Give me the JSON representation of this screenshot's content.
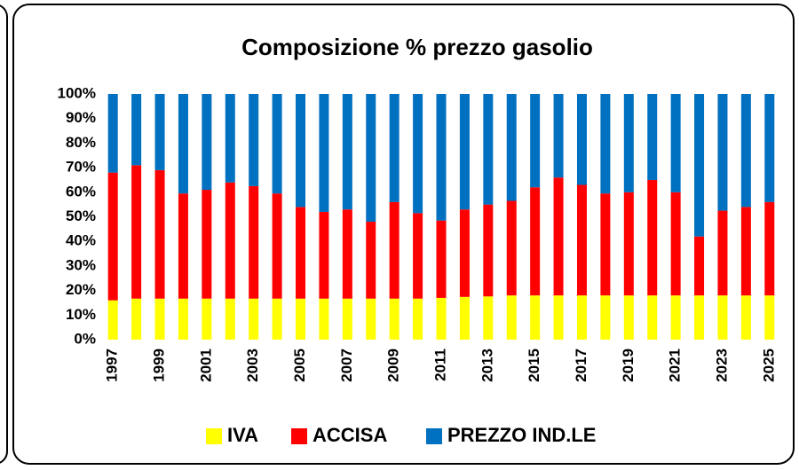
{
  "chart_data": {
    "type": "stacked_bar",
    "title": "Composizione % prezzo gasolio",
    "categories": [
      "1997",
      null,
      "1999",
      null,
      "2001",
      null,
      "2003",
      null,
      "2005",
      null,
      "2007",
      null,
      "2009",
      null,
      "2011",
      null,
      "2013",
      null,
      "2015",
      null,
      "2017",
      null,
      "2019",
      null,
      "2021",
      null,
      "2023",
      null,
      "2025"
    ],
    "series": [
      {
        "name": "IVA",
        "color": "#ffff00",
        "values": [
          16,
          16.7,
          16.7,
          16.7,
          16.7,
          16.7,
          16.7,
          16.7,
          16.7,
          16.7,
          16.7,
          16.7,
          16.7,
          16.7,
          17,
          17.4,
          17.6,
          18,
          18,
          18,
          18,
          18,
          18,
          18,
          18,
          18,
          18,
          18,
          18
        ]
      },
      {
        "name": "ACCISA",
        "color": "#ff0000",
        "values": [
          52,
          54.3,
          52.3,
          42.8,
          44.3,
          47.3,
          45.8,
          42.8,
          37.3,
          35.3,
          36.3,
          31.3,
          39.3,
          34.8,
          31.5,
          35.6,
          37.4,
          38.5,
          44,
          48,
          45,
          41.5,
          42,
          47,
          42,
          24,
          34.5,
          36,
          38
        ]
      },
      {
        "name": "PREZZO IND.LE",
        "color": "#0070c0",
        "values": [
          32,
          29,
          31,
          40.5,
          39,
          36,
          37.5,
          40.5,
          46,
          48,
          47,
          52,
          44,
          48.5,
          51.5,
          47,
          45,
          43.5,
          38,
          34,
          37,
          40.5,
          40,
          35,
          40,
          58,
          47.5,
          46,
          44
        ]
      }
    ],
    "ylim": [
      0,
      100
    ],
    "yticks": [
      {
        "value": 0,
        "label": "0%"
      },
      {
        "value": 10,
        "label": "10%"
      },
      {
        "value": 20,
        "label": "20%"
      },
      {
        "value": 30,
        "label": "30%"
      },
      {
        "value": 40,
        "label": "40%"
      },
      {
        "value": 50,
        "label": "50%"
      },
      {
        "value": 60,
        "label": "60%"
      },
      {
        "value": 70,
        "label": "70%"
      },
      {
        "value": 80,
        "label": "80%"
      },
      {
        "value": 90,
        "label": "90%"
      },
      {
        "value": 100,
        "label": "100%"
      }
    ],
    "legend": "bottom",
    "grid": false
  }
}
